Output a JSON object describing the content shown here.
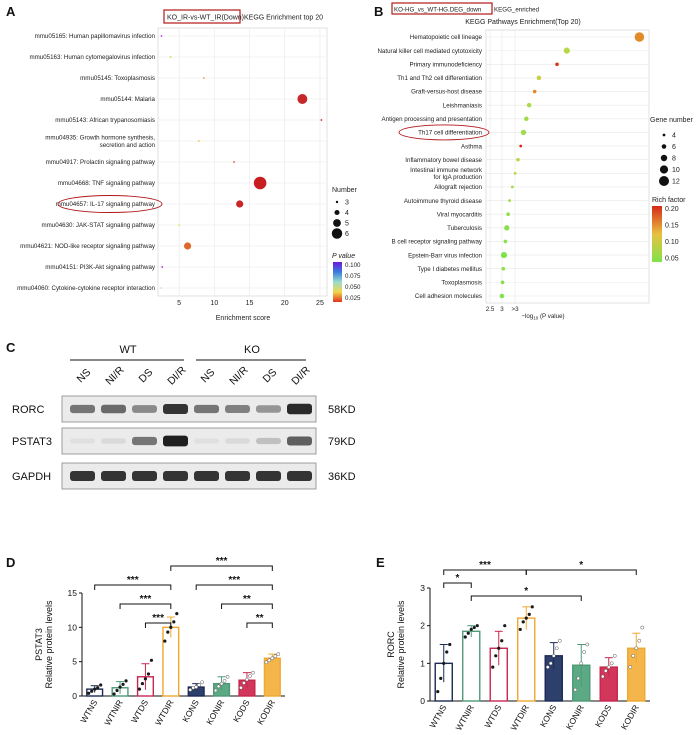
{
  "labels": {
    "A": "A",
    "B": "B",
    "C": "C",
    "D": "D",
    "E": "E"
  },
  "chart_data": [
    {
      "id": "A",
      "type": "scatter",
      "title_boxed": "KO_IR-vs-WT_IR(Down)",
      "title_rest": "KEGG Enrichment top 20",
      "xlabel": "Enrichment score",
      "xlim": [
        2,
        26
      ],
      "xticks": [
        5,
        10,
        15,
        20,
        25
      ],
      "categories": [
        "mmu05165: Human papillomavirus infection",
        "mmu05163: Human cytomegalovirus infection",
        "mmu05145: Toxoplasmosis",
        "mmu05144: Malaria",
        "mmu05143: African trypanosomiasis",
        "mmu04935: Growth hormone synthesis,|secretion and action",
        "mmu04917: Prolactin signaling pathway",
        "mmu04668: TNF signaling pathway",
        "mmu04657: IL-17 signaling pathway",
        "mmu04630: JAK-STAT signaling pathway",
        "mmu04621: NOD-like receptor signaling pathway",
        "mmu04151: PI3K-Akt signaling pathway",
        "mmu04060: Cytokine-cytokine receptor interaction"
      ],
      "points": [
        {
          "x": 2.5,
          "number": 3,
          "p": 0.095,
          "color": "#c32cf0"
        },
        {
          "x": 3.8,
          "number": 3,
          "p": 0.045,
          "color": "#b9e34a"
        },
        {
          "x": 8.5,
          "number": 3,
          "p": 0.03,
          "color": "#e9a03a"
        },
        {
          "x": 22.5,
          "number": 6,
          "p": 0.008,
          "color": "#c6282a"
        },
        {
          "x": 25.2,
          "number": 3,
          "p": 0.006,
          "color": "#d13022"
        },
        {
          "x": 7.8,
          "number": 3,
          "p": 0.035,
          "color": "#f0c040"
        },
        {
          "x": 12.8,
          "number": 3,
          "p": 0.01,
          "color": "#d84a2a"
        },
        {
          "x": 16.5,
          "number": 7,
          "p": 0.002,
          "color": "#c81e22"
        },
        {
          "x": 13.6,
          "number": 5,
          "p": 0.004,
          "color": "#c92626"
        },
        {
          "x": 5.0,
          "number": 3,
          "p": 0.06,
          "color": "#d8e855"
        },
        {
          "x": 6.2,
          "number": 5,
          "p": 0.02,
          "color": "#dd6a2c"
        },
        {
          "x": 2.6,
          "number": 3,
          "p": 0.09,
          "color": "#a42ad0"
        },
        {
          "x": 2.4,
          "number": 3,
          "p": 0.08,
          "color": "#b8e8e0"
        }
      ],
      "highlight_index": 8,
      "size_legend": {
        "title": "Number",
        "values": [
          "3",
          "4",
          "5",
          "6"
        ]
      },
      "color_legend": {
        "title": "P value",
        "ticks": [
          "0.100",
          "0.075",
          "0.050",
          "0.025"
        ]
      }
    },
    {
      "id": "B",
      "type": "scatter",
      "title_boxed": "KO-HG_vs_WT-HG.DEG_down",
      "title_small": "KEGG_enriched",
      "subtitle": "KEGG Pathways Enrichment(Top 20)",
      "xlabel_pre": "−log",
      "xlabel_sub": "10",
      "xlabel_post": " (P value)",
      "xticks": [
        "2.5",
        "3",
        ">3"
      ],
      "categories": [
        "Hematopoietic cell lineage",
        "Natural killer cell mediated cytotoxicity",
        "Primary immunodeficiency",
        "Th1 and Th2 cell differentiation",
        "Graft-versus-host disease",
        "Leishmaniasis",
        "Antigen processing and presentation",
        "Th17 cell differentiation",
        "Asthma",
        "Inflammatory bowel disease",
        "Intestinal immune network|for IgA production",
        "Allograft rejection",
        "Autoimmune thyroid disease",
        "Viral myocarditis",
        "Tuberculosis",
        "B cell receptor signaling pathway",
        "Epstein-Barr virus infection",
        "Type I diabetes mellitus",
        "Toxoplasmosis",
        "Cell adhesion molecules"
      ],
      "points": [
        {
          "x": 13.2,
          "gene": 12,
          "rich": 0.18,
          "color": "#e08a2a"
        },
        {
          "x": 8.0,
          "gene": 8,
          "rich": 0.11,
          "color": "#b8d848"
        },
        {
          "x": 7.3,
          "gene": 5,
          "rich": 0.19,
          "color": "#d63a1e"
        },
        {
          "x": 6.0,
          "gene": 6,
          "rich": 0.12,
          "color": "#c8d040"
        },
        {
          "x": 5.7,
          "gene": 5,
          "rich": 0.17,
          "color": "#e08a28"
        },
        {
          "x": 5.3,
          "gene": 6,
          "rich": 0.1,
          "color": "#a6dc48"
        },
        {
          "x": 5.1,
          "gene": 6,
          "rich": 0.09,
          "color": "#9edc48"
        },
        {
          "x": 4.9,
          "gene": 7,
          "rich": 0.09,
          "color": "#a0dc48"
        },
        {
          "x": 4.7,
          "gene": 4,
          "rich": 0.2,
          "color": "#d82a1a"
        },
        {
          "x": 4.5,
          "gene": 5,
          "rich": 0.11,
          "color": "#b4da4a"
        },
        {
          "x": 4.3,
          "gene": 4,
          "rich": 0.12,
          "color": "#bcd848"
        },
        {
          "x": 4.1,
          "gene": 4,
          "rich": 0.1,
          "color": "#a8dc48"
        },
        {
          "x": 3.9,
          "gene": 4,
          "rich": 0.1,
          "color": "#a6dc48"
        },
        {
          "x": 3.8,
          "gene": 5,
          "rich": 0.07,
          "color": "#90e048"
        },
        {
          "x": 3.7,
          "gene": 7,
          "rich": 0.06,
          "color": "#88e04a"
        },
        {
          "x": 3.6,
          "gene": 5,
          "rich": 0.07,
          "color": "#8ee04a"
        },
        {
          "x": 3.5,
          "gene": 8,
          "rich": 0.05,
          "color": "#80e24a"
        },
        {
          "x": 3.45,
          "gene": 5,
          "rich": 0.07,
          "color": "#90e04a"
        },
        {
          "x": 3.4,
          "gene": 5,
          "rich": 0.06,
          "color": "#86e04a"
        },
        {
          "x": 3.35,
          "gene": 6,
          "rich": 0.05,
          "color": "#7ee24a"
        }
      ],
      "highlight_index": 7,
      "size_legend": {
        "title": "Gene number",
        "values": [
          "4",
          "6",
          "8",
          "10",
          "12"
        ]
      },
      "color_legend": {
        "title": "Rich factor",
        "ticks": [
          "0.20",
          "0.15",
          "0.10",
          "0.05"
        ]
      }
    },
    {
      "id": "D",
      "type": "bar",
      "ylabel_top": "PSTAT3",
      "ylabel_bottom": "Relative protein levels",
      "ylim": [
        0,
        15
      ],
      "yticks": [
        0,
        5,
        10,
        15
      ],
      "categories": [
        "WTNS",
        "WTNIR",
        "WTDS",
        "WTDIR",
        "KONS",
        "KONIR",
        "KODS",
        "KODIR"
      ],
      "values": [
        1.0,
        1.2,
        2.8,
        10.0,
        1.3,
        1.8,
        2.3,
        5.5
      ],
      "errors": [
        0.5,
        0.9,
        1.9,
        1.5,
        0.5,
        1.0,
        1.1,
        0.6
      ],
      "colors": [
        "#ffffff",
        "#ffffff",
        "#ffffff",
        "#ffffff",
        "#2d3f6b",
        "#5ca985",
        "#d2365a",
        "#f4b64a"
      ],
      "edges": [
        "#1b2a55",
        "#4e9a77",
        "#c7274e",
        "#f0a830",
        "#1b2a55",
        "#4e9a77",
        "#c7274e",
        "#f0a830"
      ],
      "dots": [
        [
          0.4,
          0.7,
          1.0,
          1.2,
          1.6
        ],
        [
          0.3,
          0.8,
          1.3,
          1.7,
          2.2
        ],
        [
          1.0,
          1.8,
          2.5,
          3.2,
          5.2
        ],
        [
          8.0,
          9.3,
          10.0,
          10.8,
          12.0
        ],
        [
          0.9,
          1.2,
          1.3,
          1.6,
          2.0
        ],
        [
          0.8,
          1.4,
          1.8,
          2.2,
          2.8
        ],
        [
          1.2,
          1.9,
          2.4,
          2.9,
          3.4
        ],
        [
          4.9,
          5.2,
          5.5,
          5.8,
          6.1
        ]
      ],
      "significance": [
        {
          "from": 0,
          "to": 3,
          "label": "***",
          "level": 2
        },
        {
          "from": 1,
          "to": 3,
          "label": "***",
          "level": 1
        },
        {
          "from": 2,
          "to": 3,
          "label": "***",
          "level": 0
        },
        {
          "from": 3,
          "to": 7,
          "label": "***",
          "level": 3
        },
        {
          "from": 4,
          "to": 7,
          "label": "***",
          "level": 2
        },
        {
          "from": 5,
          "to": 7,
          "label": "**",
          "level": 1
        },
        {
          "from": 6,
          "to": 7,
          "label": "**",
          "level": 0
        }
      ]
    },
    {
      "id": "E",
      "type": "bar",
      "ylabel_top": "RORC",
      "ylabel_bottom": "Relative protein levels",
      "ylim": [
        0,
        3
      ],
      "yticks": [
        0,
        1,
        2,
        3
      ],
      "categories": [
        "WTNS",
        "WTNIR",
        "WTDS",
        "WTDIR",
        "KONS",
        "KONIR",
        "KODS",
        "KODIR"
      ],
      "values": [
        1.0,
        1.85,
        1.4,
        2.2,
        1.2,
        0.95,
        0.9,
        1.4
      ],
      "errors": [
        0.5,
        0.15,
        0.45,
        0.3,
        0.35,
        0.55,
        0.25,
        0.4
      ],
      "colors": [
        "#ffffff",
        "#ffffff",
        "#ffffff",
        "#ffffff",
        "#2d3f6b",
        "#5ca985",
        "#d2365a",
        "#f4b64a"
      ],
      "edges": [
        "#1b2a55",
        "#4e9a77",
        "#c7274e",
        "#f0a830",
        "#1b2a55",
        "#4e9a77",
        "#c7274e",
        "#f0a830"
      ],
      "dots": [
        [
          0.25,
          0.6,
          1.0,
          1.3,
          1.5
        ],
        [
          1.7,
          1.8,
          1.9,
          1.95,
          2.0
        ],
        [
          0.9,
          1.2,
          1.4,
          1.6,
          2.0
        ],
        [
          1.9,
          2.1,
          2.2,
          2.3,
          2.5
        ],
        [
          0.9,
          1.0,
          1.2,
          1.4,
          1.6
        ],
        [
          0.3,
          0.6,
          1.0,
          1.3,
          1.5
        ],
        [
          0.65,
          0.8,
          0.9,
          1.0,
          1.2
        ],
        [
          0.9,
          1.2,
          1.4,
          1.6,
          1.95
        ]
      ],
      "significance": [
        {
          "from": 0,
          "to": 1,
          "label": "*",
          "level": 1
        },
        {
          "from": 0,
          "to": 3,
          "label": "***",
          "level": 2
        },
        {
          "from": 1,
          "to": 5,
          "label": "*",
          "level": 0
        },
        {
          "from": 3,
          "to": 7,
          "label": "*",
          "level": 2
        }
      ]
    }
  ],
  "blot": {
    "group_wt": "WT",
    "group_ko": "KO",
    "lanes": [
      "NS",
      "NI/R",
      "DS",
      "DI/R",
      "NS",
      "NI/R",
      "DS",
      "DI/R"
    ],
    "rows": [
      {
        "name": "RORC",
        "kd": "58KD",
        "intensity": [
          0.55,
          0.6,
          0.45,
          0.85,
          0.55,
          0.5,
          0.4,
          0.9
        ]
      },
      {
        "name": "PSTAT3",
        "kd": "79KD",
        "intensity": [
          0.05,
          0.08,
          0.55,
          0.95,
          0.05,
          0.08,
          0.2,
          0.65
        ]
      },
      {
        "name": "GAPDH",
        "kd": "36KD",
        "intensity": [
          0.85,
          0.85,
          0.85,
          0.85,
          0.85,
          0.85,
          0.85,
          0.85
        ]
      }
    ]
  }
}
